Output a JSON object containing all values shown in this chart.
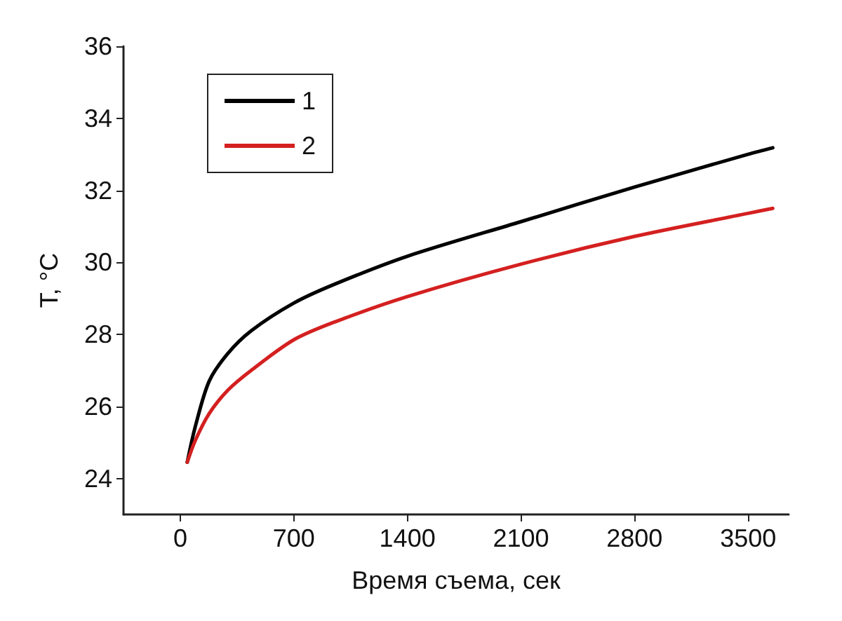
{
  "chart_data": {
    "type": "line",
    "xlabel": "Время съема, сек",
    "ylabel": "T, °C",
    "xlim": [
      -350,
      3750
    ],
    "xticks": [
      0,
      700,
      1400,
      2100,
      2800,
      3500
    ],
    "ylim": [
      23,
      36
    ],
    "yticks": [
      24,
      26,
      28,
      30,
      32,
      34,
      36
    ],
    "grid": false,
    "legend": "top left",
    "marker": "none",
    "line_style": "solid",
    "series": [
      {
        "name": "1",
        "color": "#000000",
        "x": [
          43,
          92,
          178,
          293,
          437,
          700,
          955,
          1400,
          2100,
          2800,
          3500,
          3652
        ],
        "values": [
          24.45,
          25.43,
          26.7,
          27.47,
          28.1,
          28.87,
          29.4,
          30.17,
          31.13,
          32.09,
          33.0,
          33.18
        ]
      },
      {
        "name": "2",
        "color": "#d42020",
        "x": [
          43,
          92,
          178,
          293,
          437,
          700,
          955,
          1400,
          2100,
          2800,
          3500,
          3652
        ],
        "values": [
          24.45,
          25.05,
          25.8,
          26.45,
          27.0,
          27.85,
          28.35,
          29.05,
          29.95,
          30.72,
          31.36,
          31.5
        ]
      }
    ]
  }
}
